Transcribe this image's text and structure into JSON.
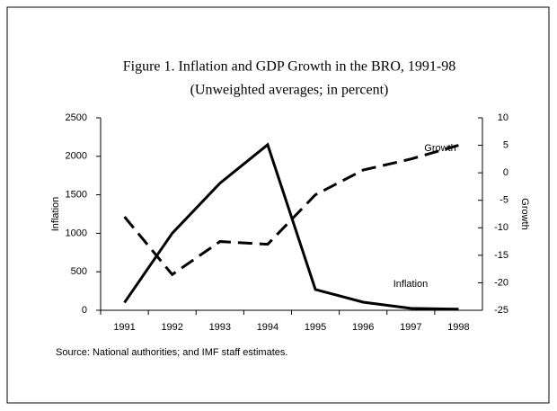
{
  "chart_data": {
    "type": "line",
    "title": "Figure 1. Inflation and GDP Growth in the BRO, 1991-98",
    "subtitle": "(Unweighted averages; in percent)",
    "y_label": "Inflation",
    "y2_label": "Growth",
    "categories": [
      "1991",
      "1992",
      "1993",
      "1994",
      "1995",
      "1996",
      "1997",
      "1998"
    ],
    "series": [
      {
        "name": "Inflation",
        "color": "#000000",
        "dash": "solid",
        "values": [
          100,
          1000,
          1650,
          2150,
          270,
          105,
          25,
          15
        ]
      },
      {
        "name": "Growth",
        "color": "#000000",
        "dash": "dashed",
        "axis": "y2",
        "values": [
          -8,
          -18.5,
          -12.5,
          -13,
          -4,
          0.5,
          2.5,
          5
        ]
      }
    ],
    "ylim": [
      0,
      2500
    ],
    "yticks": [
      0,
      500,
      1000,
      1500,
      2000,
      2500
    ],
    "y2lim": [
      -25,
      10
    ],
    "y2ticks": [
      -25,
      -20,
      -15,
      -10,
      -5,
      0,
      5,
      10
    ],
    "source": "Source: National authorities; and IMF staff estimates."
  }
}
